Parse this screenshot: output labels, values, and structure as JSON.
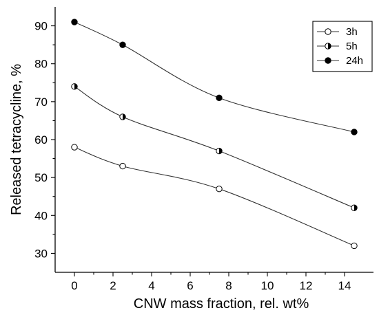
{
  "chart_data": {
    "type": "line",
    "xlabel": "CNW mass fraction, rel. wt%",
    "ylabel": "Released tetracycline, %",
    "xlim": [
      -1,
      15.5
    ],
    "ylim": [
      25,
      95
    ],
    "xticks": [
      0,
      2,
      4,
      6,
      8,
      10,
      12,
      14
    ],
    "yticks": [
      30,
      40,
      50,
      60,
      70,
      80,
      90
    ],
    "legend_position": "top-right",
    "series": [
      {
        "name": "3h",
        "marker": "open-circle",
        "x": [
          0,
          2.5,
          7.5,
          14.5
        ],
        "y": [
          58,
          53,
          47,
          32
        ]
      },
      {
        "name": "5h",
        "marker": "half-filled-circle",
        "x": [
          0,
          2.5,
          7.5,
          14.5
        ],
        "y": [
          74,
          66,
          57,
          42
        ]
      },
      {
        "name": "24h",
        "marker": "filled-circle",
        "x": [
          0,
          2.5,
          7.5,
          14.5
        ],
        "y": [
          91,
          85,
          71,
          62
        ]
      }
    ]
  }
}
